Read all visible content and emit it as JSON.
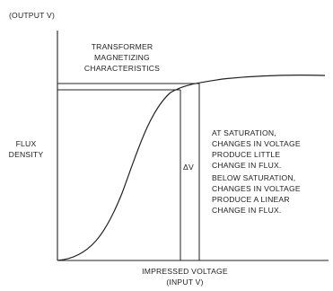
{
  "labels": {
    "y_axis_top": "(OUTPUT V)",
    "title": [
      "TRANSFORMER",
      "MAGNETIZING",
      "CHARACTERISTICS"
    ],
    "y_axis_name": [
      "FLUX",
      "DENSITY"
    ],
    "delta_v": "ΔV",
    "note": [
      "AT SATURATION,",
      "CHANGES IN VOLTAGE",
      "PRODUCE LITTLE",
      "CHANGE IN FLUX.",
      "BELOW SATURATION,",
      "CHANGES IN VOLTAGE",
      "PRODUCE A LINEAR",
      "CHANGE IN FLUX."
    ],
    "x_axis_name": [
      "IMPRESSED VOLTAGE",
      "(INPUT V)"
    ]
  }
}
